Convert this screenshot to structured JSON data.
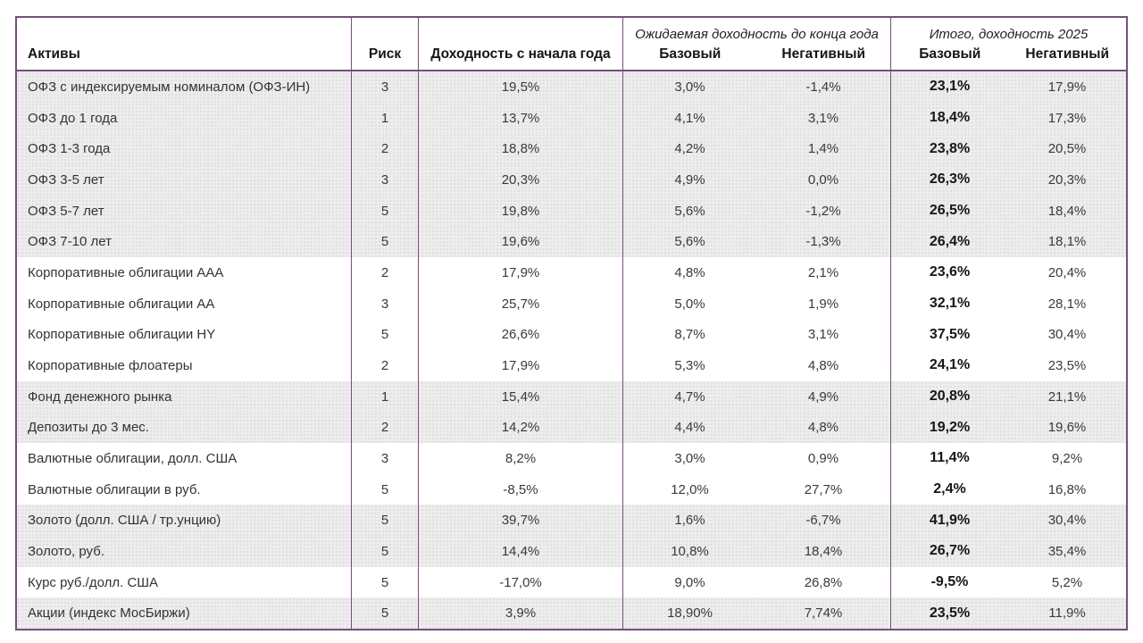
{
  "chart_data": {
    "type": "table",
    "header": {
      "assets": "Активы",
      "risk": "Риск",
      "ytd": "Доходность с начала года",
      "group_expected": {
        "title": "Ожидаемая доходность до конца года",
        "base": "Базовый",
        "negative": "Негативный"
      },
      "group_total": {
        "title": "Итого, доходность 2025",
        "base": "Базовый",
        "negative": "Негативный"
      }
    },
    "rows": [
      {
        "asset": "ОФЗ с индексируемым номиналом (ОФЗ-ИН)",
        "risk": "3",
        "ytd": "19,5%",
        "expected_base": "3,0%",
        "expected_negative": "-1,4%",
        "total_base": "23,1%",
        "total_negative": "17,9%",
        "shaded": true
      },
      {
        "asset": "ОФЗ до 1 года",
        "risk": "1",
        "ytd": "13,7%",
        "expected_base": "4,1%",
        "expected_negative": "3,1%",
        "total_base": "18,4%",
        "total_negative": "17,3%",
        "shaded": true
      },
      {
        "asset": "ОФЗ 1-3 года",
        "risk": "2",
        "ytd": "18,8%",
        "expected_base": "4,2%",
        "expected_negative": "1,4%",
        "total_base": "23,8%",
        "total_negative": "20,5%",
        "shaded": true
      },
      {
        "asset": "ОФЗ 3-5 лет",
        "risk": "3",
        "ytd": "20,3%",
        "expected_base": "4,9%",
        "expected_negative": "0,0%",
        "total_base": "26,3%",
        "total_negative": "20,3%",
        "shaded": true
      },
      {
        "asset": "ОФЗ 5-7 лет",
        "risk": "5",
        "ytd": "19,8%",
        "expected_base": "5,6%",
        "expected_negative": "-1,2%",
        "total_base": "26,5%",
        "total_negative": "18,4%",
        "shaded": true
      },
      {
        "asset": "ОФЗ 7-10 лет",
        "risk": "5",
        "ytd": "19,6%",
        "expected_base": "5,6%",
        "expected_negative": "-1,3%",
        "total_base": "26,4%",
        "total_negative": "18,1%",
        "shaded": true
      },
      {
        "asset": "Корпоративные облигации ААА",
        "risk": "2",
        "ytd": "17,9%",
        "expected_base": "4,8%",
        "expected_negative": "2,1%",
        "total_base": "23,6%",
        "total_negative": "20,4%",
        "shaded": false
      },
      {
        "asset": "Корпоративные облигации АА",
        "risk": "3",
        "ytd": "25,7%",
        "expected_base": "5,0%",
        "expected_negative": "1,9%",
        "total_base": "32,1%",
        "total_negative": "28,1%",
        "shaded": false
      },
      {
        "asset": "Корпоративные облигации HY",
        "risk": "5",
        "ytd": "26,6%",
        "expected_base": "8,7%",
        "expected_negative": "3,1%",
        "total_base": "37,5%",
        "total_negative": "30,4%",
        "shaded": false
      },
      {
        "asset": "Корпоративные флоатеры",
        "risk": "2",
        "ytd": "17,9%",
        "expected_base": "5,3%",
        "expected_negative": "4,8%",
        "total_base": "24,1%",
        "total_negative": "23,5%",
        "shaded": false
      },
      {
        "asset": "Фонд денежного рынка",
        "risk": "1",
        "ytd": "15,4%",
        "expected_base": "4,7%",
        "expected_negative": "4,9%",
        "total_base": "20,8%",
        "total_negative": "21,1%",
        "shaded": true
      },
      {
        "asset": "Депозиты до 3 мес.",
        "risk": "2",
        "ytd": "14,2%",
        "expected_base": "4,4%",
        "expected_negative": "4,8%",
        "total_base": "19,2%",
        "total_negative": "19,6%",
        "shaded": true
      },
      {
        "asset": "Валютные облигации, долл. США",
        "risk": "3",
        "ytd": "8,2%",
        "expected_base": "3,0%",
        "expected_negative": "0,9%",
        "total_base": "11,4%",
        "total_negative": "9,2%",
        "shaded": false
      },
      {
        "asset": "Валютные облигации в руб.",
        "risk": "5",
        "ytd": "-8,5%",
        "expected_base": "12,0%",
        "expected_negative": "27,7%",
        "total_base": "2,4%",
        "total_negative": "16,8%",
        "shaded": false
      },
      {
        "asset": "Золото (долл. США / тр.унцию)",
        "risk": "5",
        "ytd": "39,7%",
        "expected_base": "1,6%",
        "expected_negative": "-6,7%",
        "total_base": "41,9%",
        "total_negative": "30,4%",
        "shaded": true
      },
      {
        "asset": "Золото, руб.",
        "risk": "5",
        "ytd": "14,4%",
        "expected_base": "10,8%",
        "expected_negative": "18,4%",
        "total_base": "26,7%",
        "total_negative": "35,4%",
        "shaded": true
      },
      {
        "asset": "Курс руб./долл. США",
        "risk": "5",
        "ytd": "-17,0%",
        "expected_base": "9,0%",
        "expected_negative": "26,8%",
        "total_base": "-9,5%",
        "total_negative": "5,2%",
        "shaded": false
      },
      {
        "asset": "Акции (индекс МосБиржи)",
        "risk": "5",
        "ytd": "3,9%",
        "expected_base": "18,90%",
        "expected_negative": "7,74%",
        "total_base": "23,5%",
        "total_negative": "11,9%",
        "shaded": true
      }
    ]
  },
  "colors": {
    "border_color": "#764e7d",
    "shaded_bg": "#ededed",
    "dot_color": "#dcdcdc",
    "text_color": "#3a3a3a",
    "strong_text": "#161616"
  }
}
